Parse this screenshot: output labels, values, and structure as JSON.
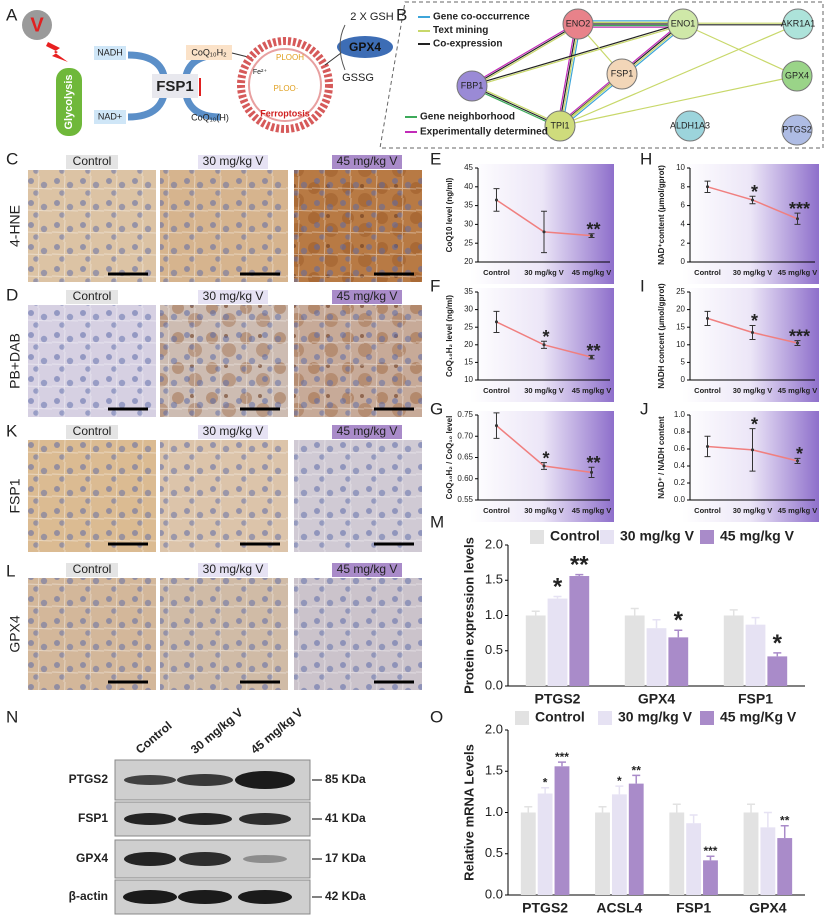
{
  "panel_labels": [
    "A",
    "B",
    "C",
    "D",
    "K",
    "L",
    "E",
    "F",
    "G",
    "H",
    "I",
    "J",
    "M",
    "N",
    "O"
  ],
  "diagram_a": {
    "v": "V",
    "nadh": "NADH",
    "nad": "NAD+",
    "glycolysis": "Glycolysis",
    "fsp1": "FSP1",
    "coq10h2": "CoQ₁₀H₂",
    "coq10h": "CoQ₁₀(H)",
    "plooh": "PLOOH",
    "fe": "Fe²⁺",
    "ploo": "PLOO·",
    "ferroptosis": "Ferroptosis",
    "gsh": "2 X GSH",
    "gpx4": "GPX4",
    "gssg": "GSSG"
  },
  "network_b": {
    "legend_top": [
      "Gene co-occurrence",
      "Text mining",
      "Co-expression"
    ],
    "legend_bottom": [
      "Gene neighborhood",
      "Experimentally determined"
    ],
    "nodes": [
      "ENO2",
      "ENO1",
      "AKR1A1",
      "FSP1",
      "GPX4",
      "FBP1",
      "TPI1",
      "ALDH1A3",
      "PTGS2"
    ]
  },
  "histology": {
    "columns": [
      "Control",
      "30 mg/kg V",
      "45 mg/kg V"
    ],
    "rows": [
      "4-HNE",
      "PB+DAB",
      "FSP1",
      "GPX4"
    ]
  },
  "chart_data": [
    {
      "type": "line",
      "ylabel": "CoQ10 level (ng/ml)",
      "categories": [
        "Control",
        "30 mg/kg V",
        "45 mg/kg V"
      ],
      "values": [
        36.5,
        28,
        27
      ],
      "errors": [
        3,
        5.5,
        0.5
      ],
      "annotations": [
        null,
        null,
        "**"
      ],
      "color": "#f07f7f",
      "ylim": [
        20,
        45
      ],
      "yticks": [
        20,
        25,
        30,
        35,
        40,
        45
      ]
    },
    {
      "type": "line",
      "ylabel": "CoQ₁₀H₂ level (ng/ml)",
      "categories": [
        "Control",
        "30 mg/kg V",
        "45 mg/kg V"
      ],
      "values": [
        26.5,
        20,
        16.5
      ],
      "errors": [
        3,
        1,
        0.5
      ],
      "annotations": [
        null,
        "*",
        "**"
      ],
      "color": "#f07f7f",
      "ylim": [
        10,
        35
      ],
      "yticks": [
        10,
        15,
        20,
        25,
        30,
        35
      ]
    },
    {
      "type": "line",
      "ylabel": "CoQ₁₀H₂ / CoQ₁₀ level",
      "categories": [
        "Control",
        "30 mg/kg V",
        "45 mg/kg V"
      ],
      "values": [
        0.725,
        0.63,
        0.615
      ],
      "errors": [
        0.03,
        0.008,
        0.012
      ],
      "annotations": [
        null,
        "*",
        "**"
      ],
      "color": "#f07f7f",
      "ylim": [
        0.55,
        0.75
      ],
      "yticks": [
        {
          "value": 0.55,
          "label": "0.55"
        },
        {
          "value": 0.6,
          "label": "0.60"
        },
        {
          "value": 0.65,
          "label": "0.65"
        },
        {
          "value": 0.7,
          "label": "0.70"
        },
        {
          "value": 0.75,
          "label": "0.75"
        }
      ]
    },
    {
      "type": "line",
      "ylabel": "NAD⁺content (μmol/gprot)",
      "categories": [
        "Control",
        "30 mg/kg V",
        "45 mg/kg V"
      ],
      "values": [
        8,
        6.6,
        4.6
      ],
      "errors": [
        0.6,
        0.4,
        0.6
      ],
      "annotations": [
        null,
        "*",
        "***"
      ],
      "color": "#f07f7f",
      "ylim": [
        0,
        10
      ],
      "yticks": [
        0,
        2,
        4,
        6,
        8,
        10
      ]
    },
    {
      "type": "line",
      "ylabel": "NADH concent (μmol/gprot)",
      "categories": [
        "Control",
        "30 mg/kg V",
        "45 mg/kg V"
      ],
      "values": [
        17.5,
        13.5,
        10.5
      ],
      "errors": [
        2,
        2,
        0.7
      ],
      "annotations": [
        null,
        "*",
        "***"
      ],
      "color": "#f07f7f",
      "ylim": [
        0,
        25
      ],
      "yticks": [
        0,
        5,
        10,
        15,
        20,
        25
      ]
    },
    {
      "type": "line",
      "ylabel": "NAD⁺ / NADH content",
      "categories": [
        "Control",
        "30 mg/kg V",
        "45 mg/kg V"
      ],
      "values": [
        0.63,
        0.59,
        0.46
      ],
      "errors": [
        0.12,
        0.25,
        0.03
      ],
      "annotations": [
        null,
        "*",
        "*"
      ],
      "color": "#f07f7f",
      "ylim": [
        0,
        1
      ],
      "yticks": [
        {
          "value": 0,
          "label": "0.0"
        },
        0.2,
        0.4,
        0.6,
        0.8,
        {
          "value": 1,
          "label": "1.0"
        }
      ]
    },
    {
      "type": "bar",
      "ylabel": "Protein expression  levels",
      "categories": [
        "PTGS2",
        "GPX4",
        "FSP1"
      ],
      "ylim": [
        0,
        2
      ],
      "yticks": [
        {
          "value": 0,
          "label": "0.0"
        },
        0.5,
        {
          "value": 1,
          "label": "1.0"
        },
        1.5,
        {
          "value": 2,
          "label": "2.0"
        }
      ],
      "series": [
        {
          "name": "Control",
          "color": "#e2e2e2",
          "values": [
            1,
            1,
            1
          ],
          "errors": [
            0.06,
            0.1,
            0.08
          ],
          "annotations": [
            null,
            null,
            null
          ]
        },
        {
          "name": "30 mg/kg V",
          "color": "#e6e2f3",
          "values": [
            1.24,
            0.82,
            0.87
          ],
          "errors": [
            0.03,
            0.12,
            0.1
          ],
          "annotations": [
            "*",
            null,
            null
          ]
        },
        {
          "name": "45 mg/kg V",
          "color": "#a98bc9",
          "values": [
            1.56,
            0.69,
            0.42
          ],
          "errors": [
            0.02,
            0.1,
            0.05
          ],
          "annotations": [
            "**",
            "*",
            "*"
          ]
        }
      ]
    },
    {
      "type": "bar",
      "ylabel": "Relative mRNA Levels",
      "categories": [
        "PTGS2",
        "ACSL4",
        "FSP1",
        "GPX4"
      ],
      "ylim": [
        0,
        2
      ],
      "yticks": [
        {
          "value": 0,
          "label": "0.0"
        },
        0.5,
        {
          "value": 1,
          "label": "1.0"
        },
        1.5,
        {
          "value": 2,
          "label": "2.0"
        }
      ],
      "series": [
        {
          "name": "Control",
          "color": "#e2e2e2",
          "values": [
            1,
            1,
            1,
            1
          ],
          "errors": [
            0.07,
            0.07,
            0.1,
            0.1
          ],
          "annotations": [
            null,
            null,
            null,
            null
          ]
        },
        {
          "name": "30 mg/kg V",
          "color": "#e6e2f3",
          "values": [
            1.23,
            1.22,
            0.87,
            0.82
          ],
          "errors": [
            0.07,
            0.1,
            0.1,
            0.18
          ],
          "annotations": [
            "*",
            "*",
            null,
            null
          ]
        },
        {
          "name": "45 mg/Kg V",
          "color": "#a98bc9",
          "values": [
            1.56,
            1.35,
            0.42,
            0.69
          ],
          "errors": [
            0.05,
            0.1,
            0.05,
            0.15
          ],
          "annotations": [
            "***",
            "**",
            "***",
            "**"
          ]
        }
      ]
    }
  ],
  "blot_n": {
    "lanes": [
      "Control",
      "30 mg/kg V",
      "45 mg/kg V"
    ],
    "proteins": [
      "PTGS2",
      "FSP1",
      "GPX4",
      "β-actin"
    ],
    "sizes": [
      "85 KDa",
      "41 KDa",
      "17 KDa",
      "42 KDa"
    ]
  }
}
